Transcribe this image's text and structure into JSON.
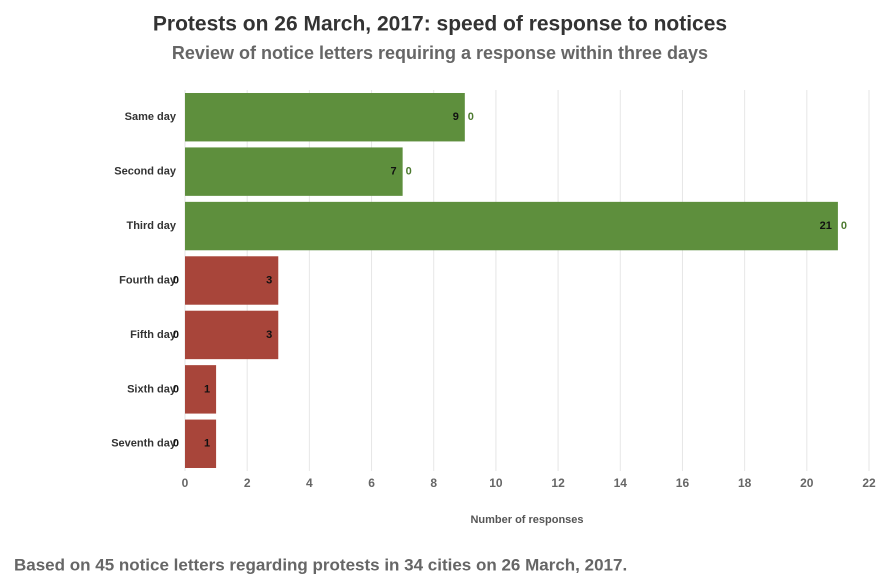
{
  "chart_data": {
    "type": "stacked-bar-horizontal",
    "title": "Protests on 26 March, 2017: speed of response to notices",
    "subtitle": "Review of notice letters requiring a response within three days",
    "x_label": "Number of responses",
    "footnote": "Based on 45 notice letters regarding protests in 34 cities on 26 March, 2017.",
    "categories": [
      "Same day",
      "Second day",
      "Third day",
      "Fourth day",
      "Fifth day",
      "Sixth day",
      "Seventh day"
    ],
    "series": [
      {
        "color": "#5e8f3d",
        "values": [
          9,
          7,
          21,
          0,
          0,
          0,
          0
        ]
      },
      {
        "color": "#a8453a",
        "values": [
          0,
          0,
          0,
          3,
          3,
          1,
          1
        ]
      }
    ],
    "xlim": [
      0,
      22
    ],
    "xticks": [
      0,
      2,
      4,
      6,
      8,
      10,
      12,
      14,
      16,
      18,
      20,
      22
    ],
    "grid": true
  }
}
